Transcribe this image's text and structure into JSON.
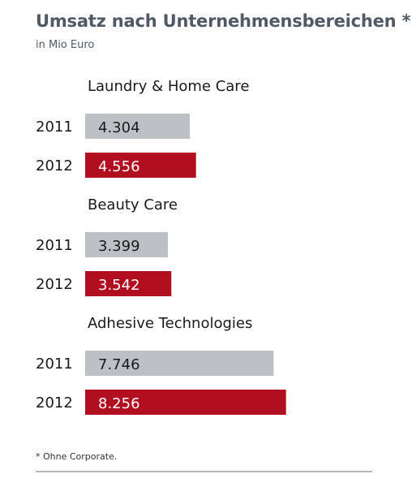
{
  "title": "Umsatz nach Unternehmensbereichen *",
  "subtitle": "in Mio Euro",
  "footnote": "* Ohne Corporate.",
  "colors": {
    "2011": "#bdc1c6",
    "2012": "#b10f1f",
    "text_on_2011": "#1a1a1a",
    "text_on_2012": "#ffffff"
  },
  "chart_data": {
    "type": "bar",
    "orientation": "horizontal",
    "categories": [
      "Laundry & Home Care",
      "Beauty Care",
      "Adhesive Technologies"
    ],
    "series": [
      {
        "name": "2011",
        "values": [
          4304,
          3399,
          7746
        ],
        "labels": [
          "4.304",
          "3.399",
          "7.746"
        ]
      },
      {
        "name": "2012",
        "values": [
          4556,
          3542,
          8256
        ],
        "labels": [
          "4.556",
          "3.542",
          "8.256"
        ]
      }
    ]
  }
}
